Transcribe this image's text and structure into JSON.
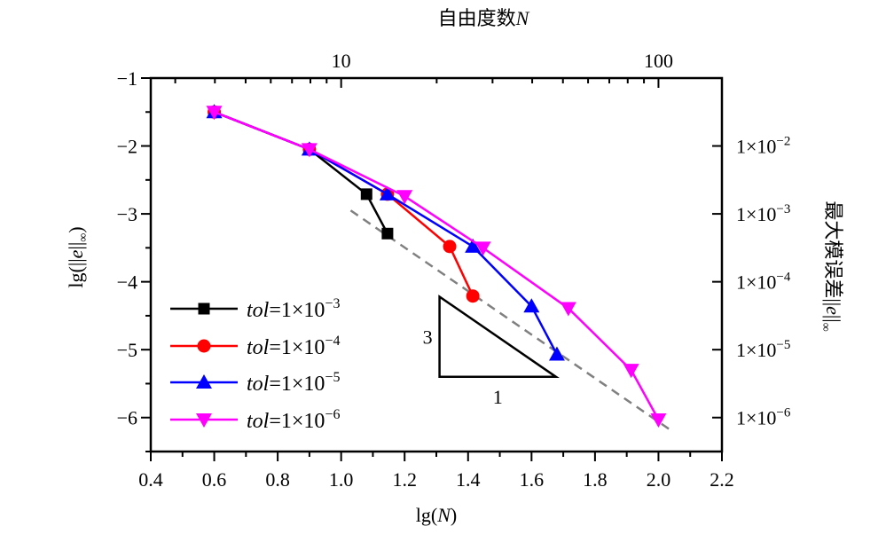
{
  "chart_data": {
    "type": "line",
    "title": "",
    "xlabel": "lg(N)",
    "ylabel": "lg(||e||∞)",
    "top_xlabel": "自由度数N",
    "right_ylabel": "最大模误差||e||∞",
    "xlim": [
      0.4,
      2.2
    ],
    "ylim": [
      -6.5,
      -1
    ],
    "x_ticks": [
      0.4,
      0.6,
      0.8,
      1.0,
      1.2,
      1.4,
      1.6,
      1.8,
      2.0,
      2.2
    ],
    "x_tick_labels": [
      "0.4",
      "0.6",
      "0.8",
      "1.0",
      "1.2",
      "1.4",
      "1.6",
      "1.8",
      "2.0",
      "2.2"
    ],
    "y_ticks": [
      -1,
      -2,
      -3,
      -4,
      -5,
      -6
    ],
    "y_tick_labels": [
      "−1",
      "−2",
      "−3",
      "−4",
      "−5",
      "−6"
    ],
    "top_ticks_major": [
      10,
      100
    ],
    "top_tick_labels": [
      "10",
      "100"
    ],
    "top_ticks_minor": [
      3,
      4,
      5,
      6,
      7,
      8,
      9,
      20,
      30,
      40,
      50,
      60,
      70,
      80,
      90
    ],
    "right_ticks": [
      -2,
      -3,
      -4,
      -5,
      -6
    ],
    "right_tick_labels": [
      {
        "base": "1×10",
        "exp": "−2"
      },
      {
        "base": "1×10",
        "exp": "−3"
      },
      {
        "base": "1×10",
        "exp": "−4"
      },
      {
        "base": "1×10",
        "exp": "−5"
      },
      {
        "base": "1×10",
        "exp": "−6"
      }
    ],
    "grid": false,
    "legend_position": "lower-left",
    "series": [
      {
        "name": "tol=1×10−3",
        "label_prefix": "tol",
        "label_value": "=1×10",
        "label_exp": "−3",
        "color": "#000000",
        "marker": "square",
        "x": [
          0.6,
          0.9,
          1.08,
          1.146
        ],
        "y": [
          -1.5,
          -2.05,
          -2.71,
          -3.29
        ]
      },
      {
        "name": "tol=1×10−4",
        "label_prefix": "tol",
        "label_value": "=1×10",
        "label_exp": "−4",
        "color": "#ff0000",
        "marker": "circle",
        "x": [
          0.6,
          0.9,
          1.146,
          1.342,
          1.415
        ],
        "y": [
          -1.5,
          -2.05,
          -2.71,
          -3.48,
          -4.21
        ]
      },
      {
        "name": "tol=1×10−5",
        "label_prefix": "tol",
        "label_value": "=1×10",
        "label_exp": "−5",
        "color": "#0000ff",
        "marker": "triangle-up",
        "x": [
          0.6,
          0.9,
          1.146,
          1.415,
          1.6,
          1.68
        ],
        "y": [
          -1.5,
          -2.05,
          -2.71,
          -3.48,
          -4.36,
          -5.07
        ]
      },
      {
        "name": "tol=1×10−6",
        "label_prefix": "tol",
        "label_value": "=1×10",
        "label_exp": "−6",
        "color": "#ff00ff",
        "marker": "triangle-down",
        "x": [
          0.6,
          0.9,
          1.2,
          1.447,
          1.716,
          1.914,
          2.0
        ],
        "y": [
          -1.5,
          -2.05,
          -2.74,
          -3.5,
          -4.39,
          -5.3,
          -6.03
        ]
      }
    ],
    "reference_line": {
      "style": "dashed",
      "color": "#808080",
      "x": [
        1.03,
        2.04
      ],
      "y": [
        -2.95,
        -6.19
      ]
    },
    "slope_triangle": {
      "vertices": [
        [
          1.31,
          -4.22
        ],
        [
          1.31,
          -5.4
        ],
        [
          1.677,
          -5.4
        ]
      ],
      "rise_label": "3",
      "run_label": "1"
    }
  }
}
